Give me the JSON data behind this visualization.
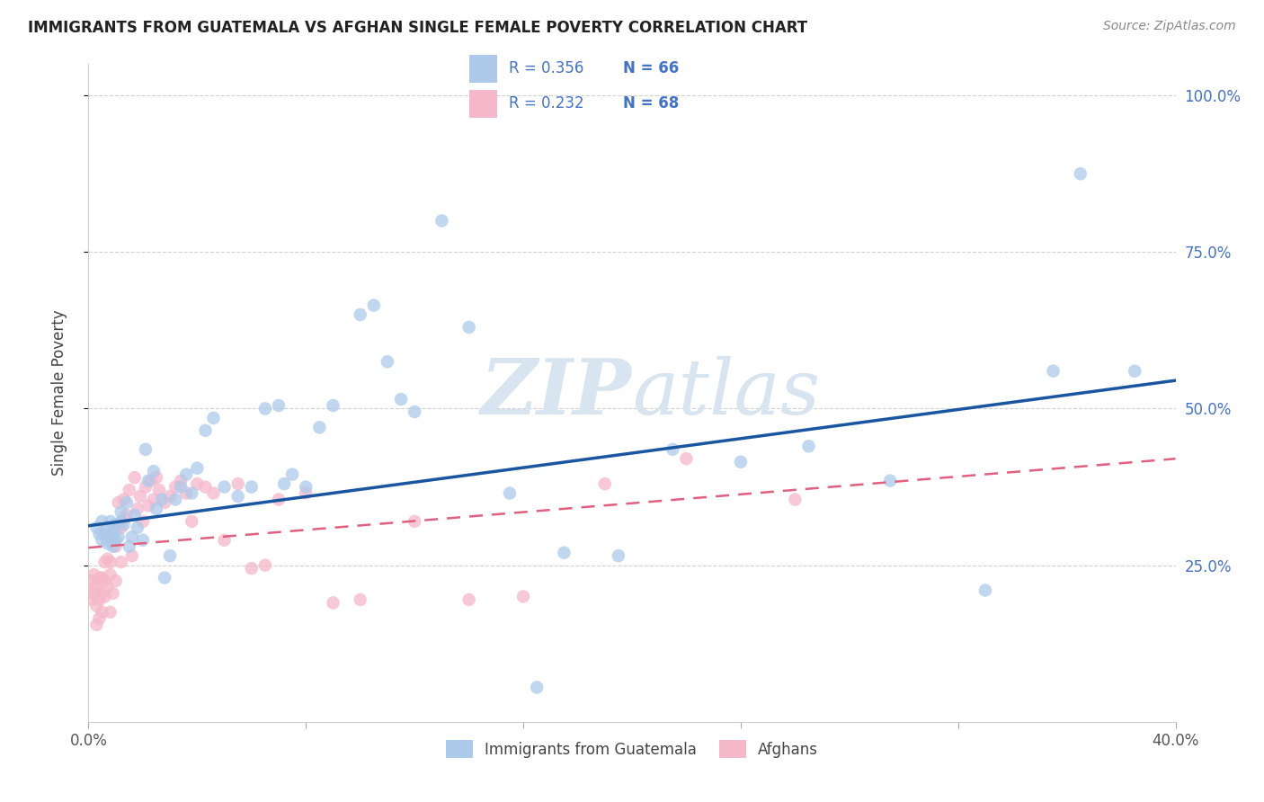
{
  "title": "IMMIGRANTS FROM GUATEMALA VS AFGHAN SINGLE FEMALE POVERTY CORRELATION CHART",
  "source": "Source: ZipAtlas.com",
  "ylabel": "Single Female Poverty",
  "xlim": [
    0.0,
    0.4
  ],
  "ylim": [
    0.0,
    1.05
  ],
  "yticks": [
    0.25,
    0.5,
    0.75,
    1.0
  ],
  "ytick_labels": [
    "25.0%",
    "50.0%",
    "75.0%",
    "100.0%"
  ],
  "xticks": [
    0.0,
    0.08,
    0.16,
    0.24,
    0.32,
    0.4
  ],
  "xtick_labels": [
    "0.0%",
    "",
    "",
    "",
    "",
    "40.0%"
  ],
  "guatemala_color": "#adc9ea",
  "afghan_color": "#f5b8cb",
  "guatemala_line_color": "#1a56a0",
  "afghan_line_color": "#e06080",
  "R_guatemala": 0.356,
  "N_guatemala": 66,
  "R_afghan": 0.232,
  "N_afghan": 68,
  "legend_label_1": "Immigrants from Guatemala",
  "legend_label_2": "Afghans",
  "watermark_zip": "ZIP",
  "watermark_atlas": "atlas",
  "background_color": "#ffffff",
  "grid_color": "#d0d0d0",
  "title_color": "#222222",
  "axis_label_color": "#444444",
  "right_tick_color": "#4472c4",
  "legend_text_color": "#333333",
  "guatemala_x": [
    0.003,
    0.004,
    0.005,
    0.005,
    0.006,
    0.007,
    0.007,
    0.008,
    0.008,
    0.009,
    0.009,
    0.01,
    0.01,
    0.011,
    0.012,
    0.012,
    0.013,
    0.014,
    0.015,
    0.016,
    0.017,
    0.018,
    0.02,
    0.021,
    0.022,
    0.024,
    0.025,
    0.027,
    0.028,
    0.03,
    0.032,
    0.034,
    0.036,
    0.038,
    0.04,
    0.043,
    0.046,
    0.05,
    0.055,
    0.06,
    0.065,
    0.07,
    0.072,
    0.075,
    0.08,
    0.085,
    0.09,
    0.1,
    0.105,
    0.11,
    0.115,
    0.12,
    0.13,
    0.14,
    0.155,
    0.165,
    0.175,
    0.195,
    0.215,
    0.24,
    0.265,
    0.295,
    0.33,
    0.355,
    0.365,
    0.385
  ],
  "guatemala_y": [
    0.31,
    0.3,
    0.32,
    0.29,
    0.3,
    0.285,
    0.31,
    0.295,
    0.32,
    0.28,
    0.305,
    0.29,
    0.315,
    0.295,
    0.32,
    0.335,
    0.315,
    0.35,
    0.28,
    0.295,
    0.33,
    0.31,
    0.29,
    0.435,
    0.385,
    0.4,
    0.34,
    0.355,
    0.23,
    0.265,
    0.355,
    0.375,
    0.395,
    0.365,
    0.405,
    0.465,
    0.485,
    0.375,
    0.36,
    0.375,
    0.5,
    0.505,
    0.38,
    0.395,
    0.375,
    0.47,
    0.505,
    0.65,
    0.665,
    0.575,
    0.515,
    0.495,
    0.8,
    0.63,
    0.365,
    0.055,
    0.27,
    0.265,
    0.435,
    0.415,
    0.44,
    0.385,
    0.21,
    0.56,
    0.875,
    0.56
  ],
  "afghan_x": [
    0.001,
    0.001,
    0.002,
    0.002,
    0.002,
    0.003,
    0.003,
    0.003,
    0.004,
    0.004,
    0.004,
    0.005,
    0.005,
    0.005,
    0.006,
    0.006,
    0.006,
    0.007,
    0.007,
    0.008,
    0.008,
    0.008,
    0.009,
    0.009,
    0.01,
    0.01,
    0.011,
    0.011,
    0.012,
    0.012,
    0.013,
    0.013,
    0.014,
    0.015,
    0.016,
    0.017,
    0.018,
    0.019,
    0.02,
    0.021,
    0.022,
    0.023,
    0.024,
    0.025,
    0.026,
    0.028,
    0.03,
    0.032,
    0.034,
    0.036,
    0.038,
    0.04,
    0.043,
    0.046,
    0.05,
    0.055,
    0.06,
    0.065,
    0.07,
    0.08,
    0.09,
    0.1,
    0.12,
    0.14,
    0.16,
    0.19,
    0.22,
    0.26
  ],
  "afghan_y": [
    0.225,
    0.195,
    0.215,
    0.235,
    0.205,
    0.155,
    0.185,
    0.215,
    0.195,
    0.165,
    0.23,
    0.175,
    0.205,
    0.23,
    0.2,
    0.225,
    0.255,
    0.215,
    0.26,
    0.235,
    0.175,
    0.255,
    0.205,
    0.295,
    0.225,
    0.28,
    0.315,
    0.35,
    0.255,
    0.31,
    0.325,
    0.355,
    0.33,
    0.37,
    0.265,
    0.39,
    0.34,
    0.36,
    0.32,
    0.375,
    0.345,
    0.385,
    0.355,
    0.39,
    0.37,
    0.35,
    0.36,
    0.375,
    0.385,
    0.365,
    0.32,
    0.38,
    0.375,
    0.365,
    0.29,
    0.38,
    0.245,
    0.25,
    0.355,
    0.365,
    0.19,
    0.195,
    0.32,
    0.195,
    0.2,
    0.38,
    0.42,
    0.355
  ],
  "line_guatemala_x0": 0.0,
  "line_guatemala_y0": 0.313,
  "line_guatemala_x1": 0.4,
  "line_guatemala_y1": 0.545,
  "line_afghan_x0": 0.0,
  "line_afghan_y0": 0.278,
  "line_afghan_x1": 0.4,
  "line_afghan_y1": 0.42
}
